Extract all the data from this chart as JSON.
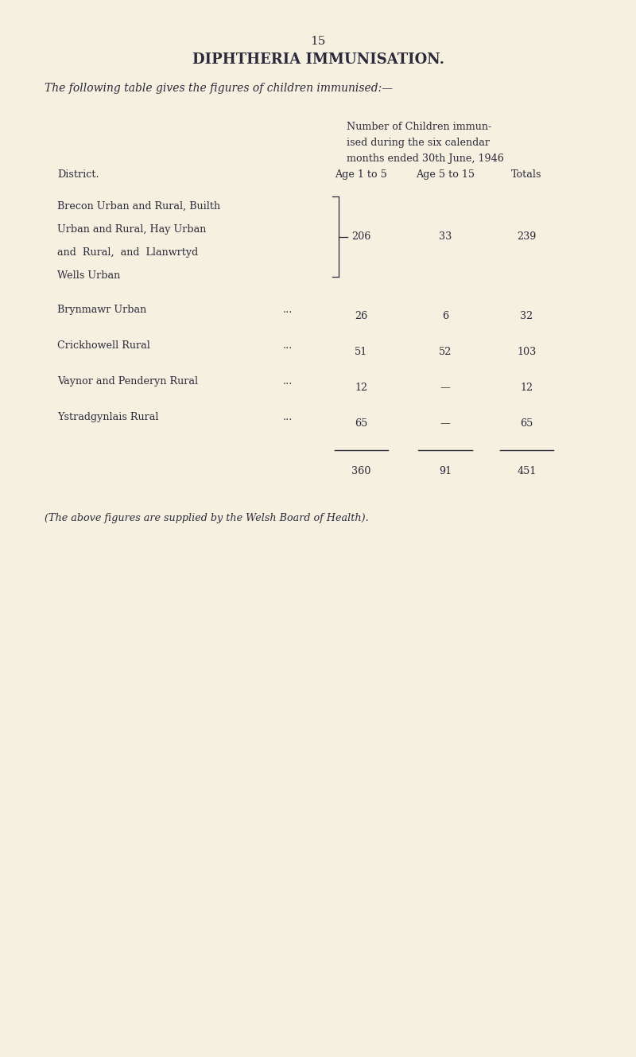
{
  "page_number": "15",
  "title": "DIPHTHERIA IMMUNISATION.",
  "intro_text": "The following table gives the figures of children immunised:—",
  "header_col1": "District.",
  "header_col2_line1": "Number of Children immun-",
  "header_col2_line2": "ised during the six calendar",
  "header_col2_line3": "months ended 30th June, 1946",
  "col_headers": [
    "Age 1 to 5",
    "Age 5 to 15",
    "Totals"
  ],
  "rows": [
    {
      "district_lines": [
        "Brecon Urban and Rural, Builth",
        "Urban and Rural, Hay Urban",
        "and  Rural,  and  Llanwrtyd",
        "Wells Urban"
      ],
      "bracket": true,
      "age1to5": "206",
      "age5to15": "33",
      "totals": "239"
    },
    {
      "district_lines": [
        "Brynmawr Urban"
      ],
      "bracket": false,
      "age1to5": "26",
      "age5to15": "6",
      "totals": "32"
    },
    {
      "district_lines": [
        "Crickhowell Rural"
      ],
      "bracket": false,
      "age1to5": "51",
      "age5to15": "52",
      "totals": "103"
    },
    {
      "district_lines": [
        "Vaynor and Penderyn Rural"
      ],
      "bracket": false,
      "age1to5": "12",
      "age5to15": "—",
      "totals": "12"
    },
    {
      "district_lines": [
        "Ystradgynlais Rural"
      ],
      "bracket": false,
      "age1to5": "65",
      "age5to15": "—",
      "totals": "65"
    }
  ],
  "totals_row": {
    "age1to5": "360",
    "age5to15": "91",
    "totals": "451"
  },
  "footnote": "(The above figures are supplied by the Welsh Board of Health).",
  "bg_color": "#f5f0e0",
  "text_color": "#2a2a3a"
}
